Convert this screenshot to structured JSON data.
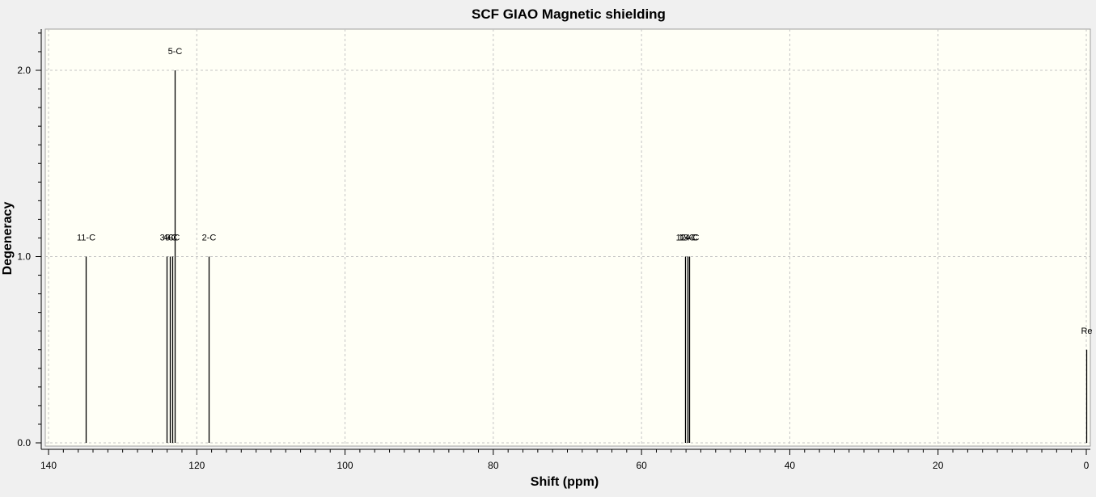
{
  "chart_data": {
    "type": "bar",
    "title": "SCF GIAO Magnetic shielding",
    "xlabel": "Shift (ppm)",
    "ylabel": "Degeneracy",
    "xlim": [
      140,
      0
    ],
    "ylim": [
      0,
      2.2
    ],
    "x_ticks": [
      140,
      120,
      100,
      80,
      60,
      40,
      20,
      0
    ],
    "y_ticks": [
      0.0,
      1.0,
      2.0
    ],
    "grid": true,
    "series": [
      {
        "points": [
          {
            "x": 135.0,
            "y": 1,
            "label": "11-C"
          },
          {
            "x": 124.1,
            "y": 1,
            "label": "3-C"
          },
          {
            "x": 123.6,
            "y": 1,
            "label": "4-C"
          },
          {
            "x": 123.3,
            "y": 1,
            "label": "9-C"
          },
          {
            "x": 123.0,
            "y": 2,
            "label": "5-C"
          },
          {
            "x": 118.4,
            "y": 1,
            "label": "2-C"
          },
          {
            "x": 54.1,
            "y": 1,
            "label": "12-C"
          },
          {
            "x": 53.8,
            "y": 1,
            "label": "13-C"
          },
          {
            "x": 53.6,
            "y": 1,
            "label": "14-C"
          },
          {
            "x": 0.0,
            "y": 0.5,
            "label": "Re"
          }
        ]
      }
    ]
  }
}
